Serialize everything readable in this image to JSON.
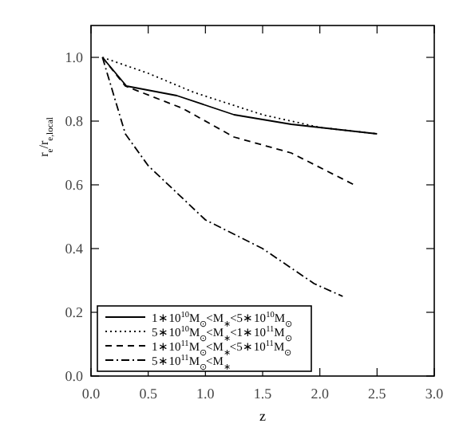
{
  "chart_data": {
    "type": "line",
    "xlabel": "z",
    "ylabel": "r$_{e}$/r$_{e,local}$",
    "xlim": [
      0,
      3
    ],
    "ylim": [
      0,
      1.1
    ],
    "xticks": [
      {
        "value": 0,
        "label": "0.0"
      },
      0.5,
      {
        "value": 1,
        "label": "1.0"
      },
      1.5,
      {
        "value": 2,
        "label": "2.0"
      },
      2.5,
      {
        "value": 3,
        "label": "3.0"
      }
    ],
    "yticks": [
      {
        "value": 0,
        "label": "0.0"
      },
      0.2,
      0.4,
      0.6,
      0.8,
      {
        "value": 1,
        "label": "1.0"
      }
    ],
    "grid": false,
    "legend": "bottom left",
    "series": [
      {
        "name": "1∗10$^{10}$M$_{⊙}$<M$_{∗}$<5∗10$^{10}$M$_{⊙}$",
        "color": "#000000",
        "line_style": "solid",
        "x": [
          0.1,
          0.31,
          0.75,
          1.25,
          1.75,
          2.5
        ],
        "values": [
          1.0,
          0.91,
          0.88,
          0.82,
          0.79,
          0.76
        ]
      },
      {
        "name": "5∗10$^{10}$M$_{⊙}$<M$_{∗}$<1∗10$^{11}$M$_{⊙}$",
        "color": "#000000",
        "line_style": "dotted",
        "x": [
          0.1,
          0.5,
          0.9,
          1.5,
          2.0,
          2.5
        ],
        "values": [
          1.0,
          0.95,
          0.89,
          0.82,
          0.78,
          0.76
        ]
      },
      {
        "name": "1∗10$^{11}$M$_{⊙}$<M$_{∗}$<5∗10$^{11}$M$_{⊙}$",
        "color": "#000000",
        "line_style": "dashed",
        "x": [
          0.1,
          0.3,
          0.8,
          1.25,
          1.75,
          2.3
        ],
        "values": [
          1.0,
          0.91,
          0.84,
          0.75,
          0.7,
          0.6
        ]
      },
      {
        "name": "5∗10$^{11}$M$_{⊙}$<M$_{∗}$",
        "color": "#000000",
        "line_style": "dashdot",
        "x": [
          0.1,
          0.3,
          0.5,
          1.0,
          1.5,
          1.95,
          2.2
        ],
        "values": [
          1.0,
          0.76,
          0.66,
          0.49,
          0.4,
          0.29,
          0.25
        ]
      }
    ]
  }
}
